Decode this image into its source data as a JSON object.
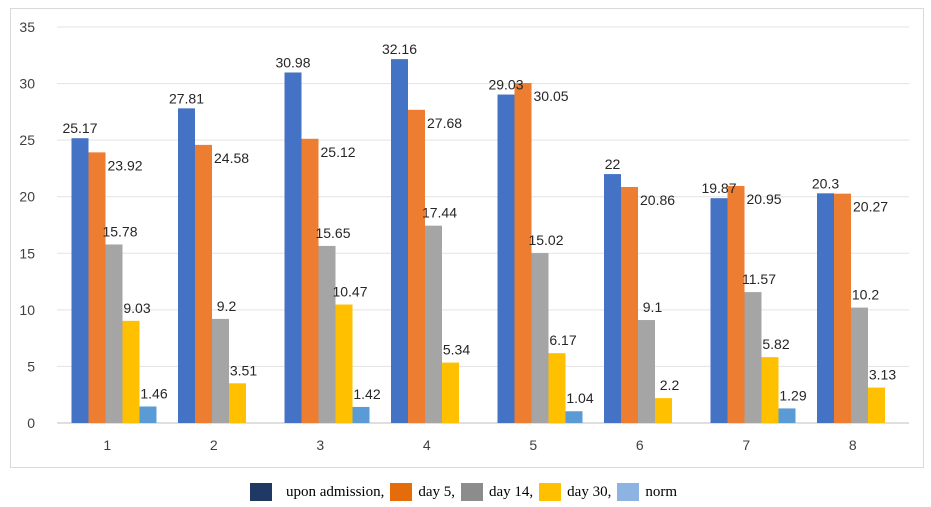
{
  "chart_data": {
    "type": "bar",
    "categories": [
      "1",
      "2",
      "3",
      "4",
      "5",
      "6",
      "7",
      "8"
    ],
    "series": [
      {
        "name": "upon admission,",
        "color": "#4472c4",
        "legend_color": "#1f3864",
        "values": [
          25.17,
          27.81,
          30.98,
          32.16,
          29.03,
          22,
          19.87,
          20.3
        ],
        "labels": [
          "25.17",
          "27.81",
          "30.98",
          "32.16",
          "29.03",
          "22",
          "19.87",
          "20.3"
        ]
      },
      {
        "name": "day 5,",
        "color": "#ed7d31",
        "legend_color": "#e46c0a",
        "values": [
          23.92,
          24.58,
          25.12,
          27.68,
          30.05,
          20.86,
          20.95,
          20.27
        ],
        "labels": [
          "23.92",
          "24.58",
          "25.12",
          "27.68",
          "30.05",
          "20.86",
          "20.95",
          "20.27"
        ]
      },
      {
        "name": "day 14,",
        "color": "#a5a5a5",
        "legend_color": "#8c8c8c",
        "values": [
          15.78,
          9.2,
          15.65,
          17.44,
          15.02,
          9.1,
          11.57,
          10.2
        ],
        "labels": [
          "15.78",
          "9.2",
          "15.65",
          "17.44",
          "15.02",
          "9.1",
          "11.57",
          "10.2"
        ]
      },
      {
        "name": "day 30,",
        "color": "#ffc000",
        "legend_color": "#ffc000",
        "values": [
          9.03,
          3.51,
          10.47,
          5.34,
          6.17,
          2.2,
          5.82,
          3.13
        ],
        "labels": [
          "9.03",
          "3.51",
          "10.47",
          "5.34",
          "6.17",
          "2.2",
          "5.82",
          "3.13"
        ]
      },
      {
        "name": "norm",
        "color": "#5b9bd5",
        "legend_color": "#8db3e2",
        "values": [
          1.46,
          null,
          1.42,
          null,
          1.04,
          null,
          1.29,
          null
        ],
        "labels": [
          "1.46",
          null,
          "1.42",
          null,
          "1.04",
          null,
          "1.29",
          null
        ]
      }
    ],
    "yticks": [
      "0",
      "5",
      "10",
      "15",
      "20",
      "25",
      "30",
      "35"
    ],
    "ylim": [
      0,
      35
    ],
    "grid": true,
    "legend_position": "bottom"
  }
}
